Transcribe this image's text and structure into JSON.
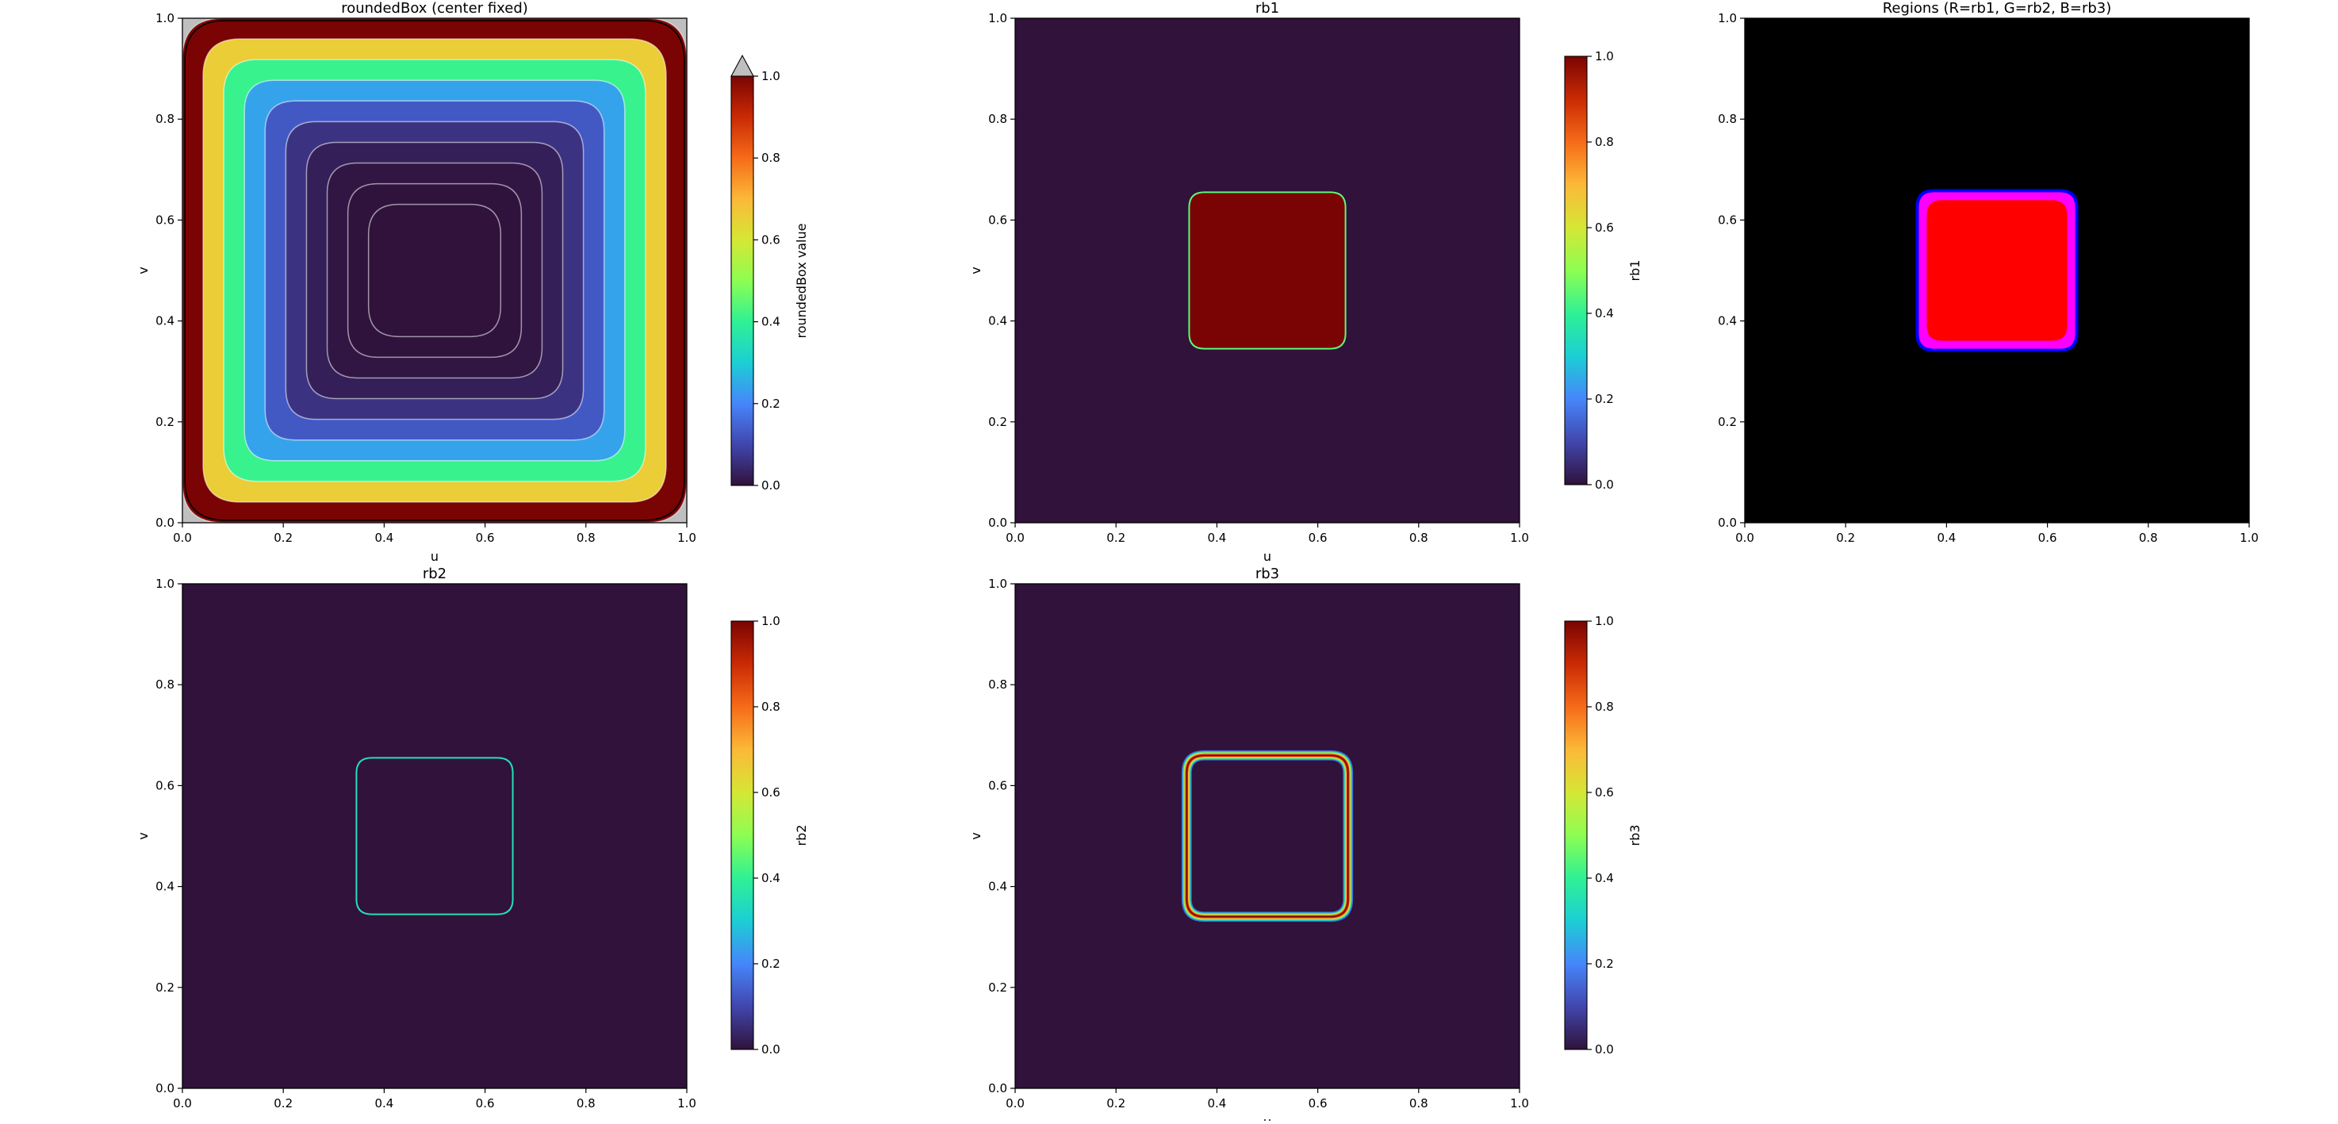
{
  "colors": {
    "turbo": [
      "#30123b",
      "#4146ad",
      "#4686fb",
      "#1bcfd4",
      "#2ff194",
      "#8dfe52",
      "#d5e735",
      "#fbb938",
      "#f66b19",
      "#ca2a04",
      "#7a0403"
    ],
    "region_magenta": "#ff00ff",
    "region_red": "#ff0000",
    "region_blue": "#0000ff",
    "over_gray": "#bfbfbf"
  },
  "chart_data": [
    {
      "type": "heatmap",
      "title": "roundedBox (center fixed)",
      "xlabel": "u",
      "ylabel": "v",
      "xlim": [
        0,
        1
      ],
      "ylim": [
        0,
        1
      ],
      "xticks": [
        "0.0",
        "0.2",
        "0.4",
        "0.6",
        "0.8",
        "1.0"
      ],
      "yticks": [
        "0.0",
        "0.2",
        "0.4",
        "0.6",
        "0.8",
        "1.0"
      ],
      "field": {
        "kind": "rounded_box_distance",
        "center": [
          0.5,
          0.5
        ],
        "half_size": [
          0.5,
          0.5
        ],
        "corner_radius": 0.06,
        "contour_levels": 10
      },
      "colorbar": {
        "label": "roundedBox value",
        "min": 0,
        "max": 1,
        "ticks": [
          "0.0",
          "0.2",
          "0.4",
          "0.6",
          "0.8",
          "1.0"
        ],
        "extend_max": true
      }
    },
    {
      "type": "heatmap",
      "title": "rb1",
      "xlabel": "u",
      "ylabel": "v",
      "xlim": [
        0,
        1
      ],
      "ylim": [
        0,
        1
      ],
      "xticks": [
        "0.0",
        "0.2",
        "0.4",
        "0.6",
        "0.8",
        "1.0"
      ],
      "yticks": [
        "0.0",
        "0.2",
        "0.4",
        "0.6",
        "0.8",
        "1.0"
      ],
      "field": {
        "kind": "filled_box",
        "center": [
          0.5,
          0.5
        ],
        "half_size": [
          0.155,
          0.155
        ],
        "corner_radius": 0.03,
        "value": 1.0
      },
      "colorbar": {
        "label": "rb1",
        "min": 0,
        "max": 1,
        "ticks": [
          "0.0",
          "0.2",
          "0.4",
          "0.6",
          "0.8",
          "1.0"
        ],
        "extend_max": false
      }
    },
    {
      "type": "heatmap",
      "title": "Regions (R=rb1, G=rb2, B=rb3)",
      "xlabel": "",
      "ylabel": "",
      "xlim": [
        0,
        1
      ],
      "ylim": [
        0,
        1
      ],
      "xticks": [
        "0.0",
        "0.2",
        "0.4",
        "0.6",
        "0.8",
        "1.0"
      ],
      "yticks": [
        "0.0",
        "0.2",
        "0.4",
        "0.6",
        "0.8",
        "1.0"
      ],
      "field": {
        "kind": "rgb_regions",
        "center": [
          0.5,
          0.5
        ],
        "half_size": [
          0.155,
          0.155
        ],
        "corner_radius": 0.03
      },
      "colorbar": null
    },
    {
      "type": "heatmap",
      "title": "rb2",
      "xlabel": "",
      "ylabel": "v",
      "xlim": [
        0,
        1
      ],
      "ylim": [
        0,
        1
      ],
      "xticks": [
        "0.0",
        "0.2",
        "0.4",
        "0.6",
        "0.8",
        "1.0"
      ],
      "yticks": [
        "0.0",
        "0.2",
        "0.4",
        "0.6",
        "0.8",
        "1.0"
      ],
      "field": {
        "kind": "outline",
        "center": [
          0.5,
          0.5
        ],
        "half_size": [
          0.155,
          0.155
        ],
        "corner_radius": 0.03,
        "value": 0.35
      },
      "colorbar": {
        "label": "rb2",
        "min": 0,
        "max": 1,
        "ticks": [
          "0.0",
          "0.2",
          "0.4",
          "0.6",
          "0.8",
          "1.0"
        ],
        "extend_max": false
      }
    },
    {
      "type": "heatmap",
      "title": "rb3",
      "xlabel": "u",
      "ylabel": "v",
      "xlim": [
        0,
        1
      ],
      "ylim": [
        0,
        1
      ],
      "xticks": [
        "0.0",
        "0.2",
        "0.4",
        "0.6",
        "0.8",
        "1.0"
      ],
      "yticks": [
        "0.0",
        "0.2",
        "0.4",
        "0.6",
        "0.8",
        "1.0"
      ],
      "field": {
        "kind": "band",
        "center": [
          0.5,
          0.5
        ],
        "half_size": [
          0.16,
          0.16
        ],
        "corner_radius": 0.035,
        "band_width": 0.02
      },
      "colorbar": {
        "label": "rb3",
        "min": 0,
        "max": 1,
        "ticks": [
          "0.0",
          "0.2",
          "0.4",
          "0.6",
          "0.8",
          "1.0"
        ],
        "extend_max": false
      }
    }
  ]
}
